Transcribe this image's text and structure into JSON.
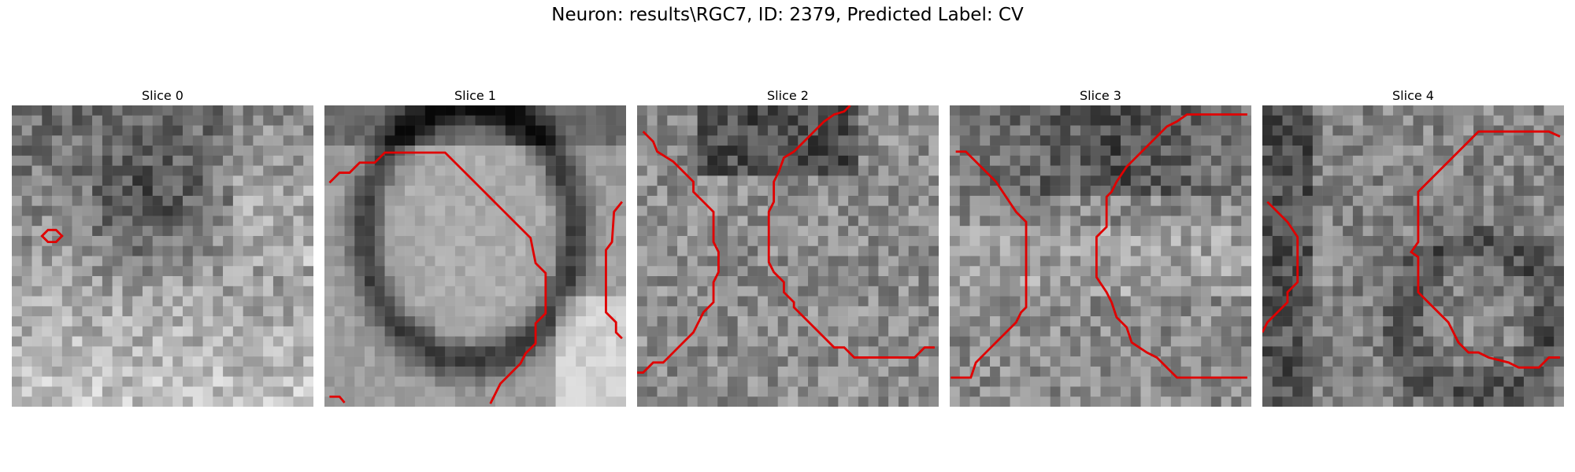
{
  "figure": {
    "title": "Neuron: results\\RGC7, ID: 2379, Predicted Label: CV"
  },
  "panels": [
    {
      "title": "Slice 0",
      "seed": 11,
      "shades": [
        "dark-band-upper-middle",
        "bright-lower-region"
      ]
    },
    {
      "title": "Slice 1",
      "seed": 23,
      "shades": [
        "dark-ellipse-ring",
        "bright-lower-right"
      ]
    },
    {
      "title": "Slice 2",
      "seed": 37,
      "shades": [
        "dark-top-band",
        "mottled-texture"
      ]
    },
    {
      "title": "Slice 3",
      "seed": 53,
      "shades": [
        "dark-x-shape",
        "mottled-texture"
      ]
    },
    {
      "title": "Slice 4",
      "seed": 71,
      "shades": [
        "dark-left-band",
        "dark-lower-right-ring"
      ]
    }
  ],
  "colors": {
    "contour": "#e00000",
    "background": "#ffffff"
  }
}
